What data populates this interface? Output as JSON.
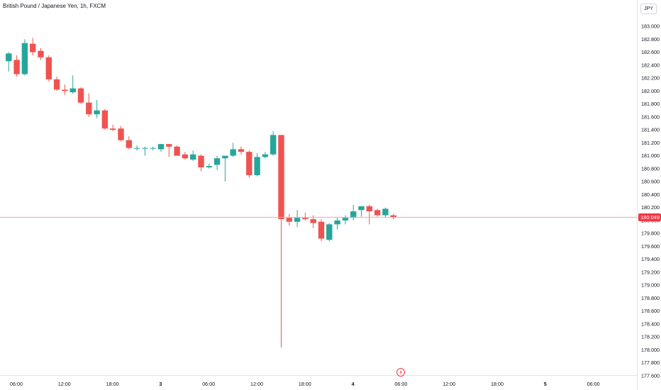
{
  "header": {
    "title": "British Pound / Japanese Yen, 1h, FXCM",
    "currency": "JPY"
  },
  "price_tag": "180.049",
  "colors": {
    "up": "#26a69a",
    "down": "#ef5350",
    "last": "#f23645",
    "event": "#f23645"
  },
  "chart_data": {
    "type": "candlestick",
    "title": "British Pound / Japanese Yen, 1h, FXCM",
    "ylabel": "JPY",
    "ylim": [
      177.55,
      183.25
    ],
    "y_ticks": [
      "177.600",
      "177.800",
      "178.000",
      "178.200",
      "178.400",
      "178.600",
      "178.800",
      "179.000",
      "179.200",
      "179.400",
      "179.600",
      "179.800",
      "180.000",
      "180.200",
      "180.400",
      "180.600",
      "180.800",
      "181.000",
      "181.200",
      "181.400",
      "181.600",
      "181.800",
      "182.000",
      "182.200",
      "182.400",
      "182.600",
      "182.800",
      "183.000"
    ],
    "x_ticks": [
      {
        "label": "06:00",
        "bold": false
      },
      {
        "label": "12:00",
        "bold": false
      },
      {
        "label": "18:00",
        "bold": false
      },
      {
        "label": "3",
        "bold": true
      },
      {
        "label": "06:00",
        "bold": false
      },
      {
        "label": "12:00",
        "bold": false
      },
      {
        "label": "18:00",
        "bold": false
      },
      {
        "label": "4",
        "bold": true
      },
      {
        "label": "06:00",
        "bold": false
      },
      {
        "label": "12:00",
        "bold": false
      },
      {
        "label": "18:00",
        "bold": false
      },
      {
        "label": "5",
        "bold": true
      },
      {
        "label": "06:00",
        "bold": false
      }
    ],
    "last_price": 180.049,
    "grid": false,
    "candles": [
      {
        "o": 182.46,
        "h": 182.6,
        "l": 182.3,
        "c": 182.58
      },
      {
        "o": 182.48,
        "h": 182.55,
        "l": 182.22,
        "c": 182.26
      },
      {
        "o": 182.26,
        "h": 182.8,
        "l": 182.24,
        "c": 182.74
      },
      {
        "o": 182.73,
        "h": 182.82,
        "l": 182.55,
        "c": 182.6
      },
      {
        "o": 182.62,
        "h": 182.66,
        "l": 182.48,
        "c": 182.52
      },
      {
        "o": 182.52,
        "h": 182.55,
        "l": 182.15,
        "c": 182.18
      },
      {
        "o": 182.18,
        "h": 182.22,
        "l": 182.0,
        "c": 182.02
      },
      {
        "o": 182.02,
        "h": 182.1,
        "l": 181.94,
        "c": 182.0
      },
      {
        "o": 181.98,
        "h": 182.24,
        "l": 181.96,
        "c": 182.04
      },
      {
        "o": 182.04,
        "h": 182.06,
        "l": 181.8,
        "c": 181.82
      },
      {
        "o": 181.82,
        "h": 181.96,
        "l": 181.6,
        "c": 181.64
      },
      {
        "o": 181.64,
        "h": 181.86,
        "l": 181.58,
        "c": 181.7
      },
      {
        "o": 181.7,
        "h": 181.72,
        "l": 181.4,
        "c": 181.42
      },
      {
        "o": 181.42,
        "h": 181.48,
        "l": 181.38,
        "c": 181.4
      },
      {
        "o": 181.42,
        "h": 181.46,
        "l": 181.22,
        "c": 181.24
      },
      {
        "o": 181.24,
        "h": 181.3,
        "l": 181.1,
        "c": 181.12
      },
      {
        "o": 181.12,
        "h": 181.16,
        "l": 181.08,
        "c": 181.12
      },
      {
        "o": 181.12,
        "h": 181.14,
        "l": 181.0,
        "c": 181.12
      },
      {
        "o": 181.12,
        "h": 181.14,
        "l": 181.08,
        "c": 181.12
      },
      {
        "o": 181.1,
        "h": 181.18,
        "l": 181.06,
        "c": 181.18
      },
      {
        "o": 181.18,
        "h": 181.18,
        "l": 180.98,
        "c": 181.14
      },
      {
        "o": 181.14,
        "h": 181.16,
        "l": 181.0,
        "c": 181.0
      },
      {
        "o": 181.02,
        "h": 181.06,
        "l": 180.94,
        "c": 180.96
      },
      {
        "o": 180.94,
        "h": 181.08,
        "l": 180.92,
        "c": 181.02
      },
      {
        "o": 181.0,
        "h": 181.02,
        "l": 180.76,
        "c": 180.82
      },
      {
        "o": 180.82,
        "h": 180.88,
        "l": 180.8,
        "c": 180.84
      },
      {
        "o": 180.86,
        "h": 181.0,
        "l": 180.78,
        "c": 180.96
      },
      {
        "o": 180.96,
        "h": 180.98,
        "l": 180.6,
        "c": 181.0
      },
      {
        "o": 181.0,
        "h": 181.2,
        "l": 180.98,
        "c": 181.1
      },
      {
        "o": 181.1,
        "h": 181.14,
        "l": 181.02,
        "c": 181.06
      },
      {
        "o": 181.06,
        "h": 181.08,
        "l": 180.66,
        "c": 180.7
      },
      {
        "o": 180.7,
        "h": 181.04,
        "l": 180.68,
        "c": 180.98
      },
      {
        "o": 180.98,
        "h": 181.06,
        "l": 180.96,
        "c": 181.02
      },
      {
        "o": 181.02,
        "h": 181.38,
        "l": 181.0,
        "c": 181.32
      },
      {
        "o": 181.32,
        "h": 181.32,
        "l": 178.04,
        "c": 180.02
      },
      {
        "o": 180.04,
        "h": 180.1,
        "l": 179.92,
        "c": 179.98
      },
      {
        "o": 179.98,
        "h": 180.16,
        "l": 179.9,
        "c": 180.04
      },
      {
        "o": 180.04,
        "h": 180.12,
        "l": 180.0,
        "c": 180.02
      },
      {
        "o": 180.02,
        "h": 180.08,
        "l": 179.88,
        "c": 179.96
      },
      {
        "o": 179.98,
        "h": 180.02,
        "l": 179.68,
        "c": 179.72
      },
      {
        "o": 179.7,
        "h": 179.96,
        "l": 179.68,
        "c": 179.94
      },
      {
        "o": 179.94,
        "h": 180.04,
        "l": 179.86,
        "c": 180.0
      },
      {
        "o": 180.0,
        "h": 180.08,
        "l": 179.94,
        "c": 180.04
      },
      {
        "o": 180.04,
        "h": 180.24,
        "l": 180.0,
        "c": 180.14
      },
      {
        "o": 180.16,
        "h": 180.22,
        "l": 180.06,
        "c": 180.22
      },
      {
        "o": 180.22,
        "h": 180.24,
        "l": 179.94,
        "c": 180.14
      },
      {
        "o": 180.16,
        "h": 180.18,
        "l": 180.06,
        "c": 180.08
      },
      {
        "o": 180.08,
        "h": 180.2,
        "l": 180.04,
        "c": 180.18
      },
      {
        "o": 180.08,
        "h": 180.1,
        "l": 180.02,
        "c": 180.05
      }
    ]
  }
}
